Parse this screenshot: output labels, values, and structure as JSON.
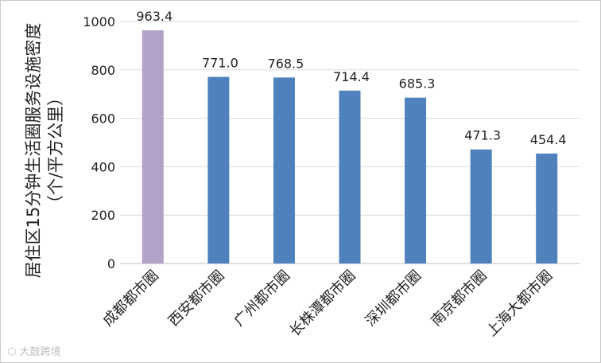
{
  "chart_data": {
    "type": "bar",
    "title": "",
    "ylabel_line1": "居住区15分钟生活圈服务设施密度",
    "ylabel_line2": "（个/平方公里）",
    "xlabel": "",
    "categories": [
      "成都都市圈",
      "西安都市圈",
      "广州都市圈",
      "长株潭都市圈",
      "深圳都市圈",
      "南京都市圈",
      "上海大都市圈"
    ],
    "values": [
      963.4,
      771.0,
      768.5,
      714.4,
      685.3,
      471.3,
      454.4
    ],
    "value_labels": [
      "963.4",
      "771.0",
      "768.5",
      "714.4",
      "685.3",
      "471.3",
      "454.4"
    ],
    "highlight_index": 0,
    "colors": {
      "highlight": "#b3a2c7",
      "bar": "#4f81bd",
      "grid": "#d9d9d9",
      "axis": "#bfbfbf"
    },
    "ylim": [
      0,
      1000
    ],
    "yticks": [
      "0",
      "200",
      "400",
      "600",
      "800",
      "1000"
    ],
    "grid": true,
    "legend": "none"
  },
  "watermark": {
    "text": "大鼓跨境",
    "icon": "logo-icon"
  }
}
